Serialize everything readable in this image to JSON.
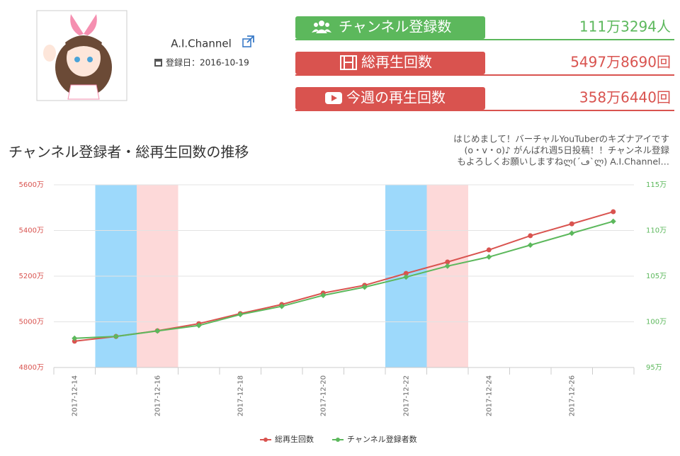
{
  "channel": {
    "name": "A.I.Channel",
    "registered": "登録日：2016-10-19"
  },
  "stats": [
    {
      "label": "チャンネル登録数",
      "value": "111万3294人"
    },
    {
      "label": "総再生回数",
      "value": "5497万8690回"
    },
    {
      "label": "今週の再生回数",
      "value": "358万6440回"
    }
  ],
  "description": [
    "はじめまして！バーチャルYouTuberのキズナアイです",
    "(o・v・o)♪ がんばれ週5日投稿！！チャンネル登録",
    "もよろしくお願いしますねლ(´ڡ`ლ) A.I.Channel…"
  ],
  "chart_data": {
    "type": "line",
    "title": "チャンネル登録者・総再生回数の推移",
    "categories": [
      "2017-12-14",
      null,
      "2017-12-16",
      null,
      "2017-12-18",
      null,
      "2017-12-20",
      null,
      "2017-12-22",
      null,
      "2017-12-24",
      null,
      "2017-12-26",
      null
    ],
    "series": [
      {
        "name": "総再生回数",
        "color": "#d9534f",
        "values": [
          4915,
          4936,
          4961,
          4992,
          5036,
          5076,
          5126,
          5160,
          5212,
          5262,
          5315,
          5377,
          5429,
          5482
        ]
      },
      {
        "name": "チャンネル登録者数",
        "color": "#5cb85c",
        "axis": "y2",
        "values": [
          98.2,
          98.4,
          99.0,
          99.6,
          100.8,
          101.7,
          102.9,
          103.8,
          104.9,
          106.1,
          107.1,
          108.4,
          109.7,
          111.0
        ]
      }
    ],
    "ylim": [
      4800,
      5600
    ],
    "yticks": [
      {
        "value": 4800,
        "label": "4800万"
      },
      {
        "value": 5000,
        "label": "5000万"
      },
      {
        "value": 5200,
        "label": "5200万"
      },
      {
        "value": 5400,
        "label": "5400万"
      },
      {
        "value": 5600,
        "label": "5600万"
      }
    ],
    "y2lim": [
      95,
      115
    ],
    "y2ticks": [
      {
        "value": 95,
        "label": "95万"
      },
      {
        "value": 100,
        "label": "100万"
      },
      {
        "value": 105,
        "label": "105万"
      },
      {
        "value": 110,
        "label": "110万"
      },
      {
        "value": 115,
        "label": "115万"
      }
    ],
    "highlights": [
      {
        "category": 1,
        "color": "#9dd9fb"
      },
      {
        "category": 2,
        "color": "#fdd9d9"
      },
      {
        "category": 8,
        "color": "#9dd9fb"
      },
      {
        "category": 9,
        "color": "#fdd9d9"
      }
    ],
    "grid": true
  }
}
